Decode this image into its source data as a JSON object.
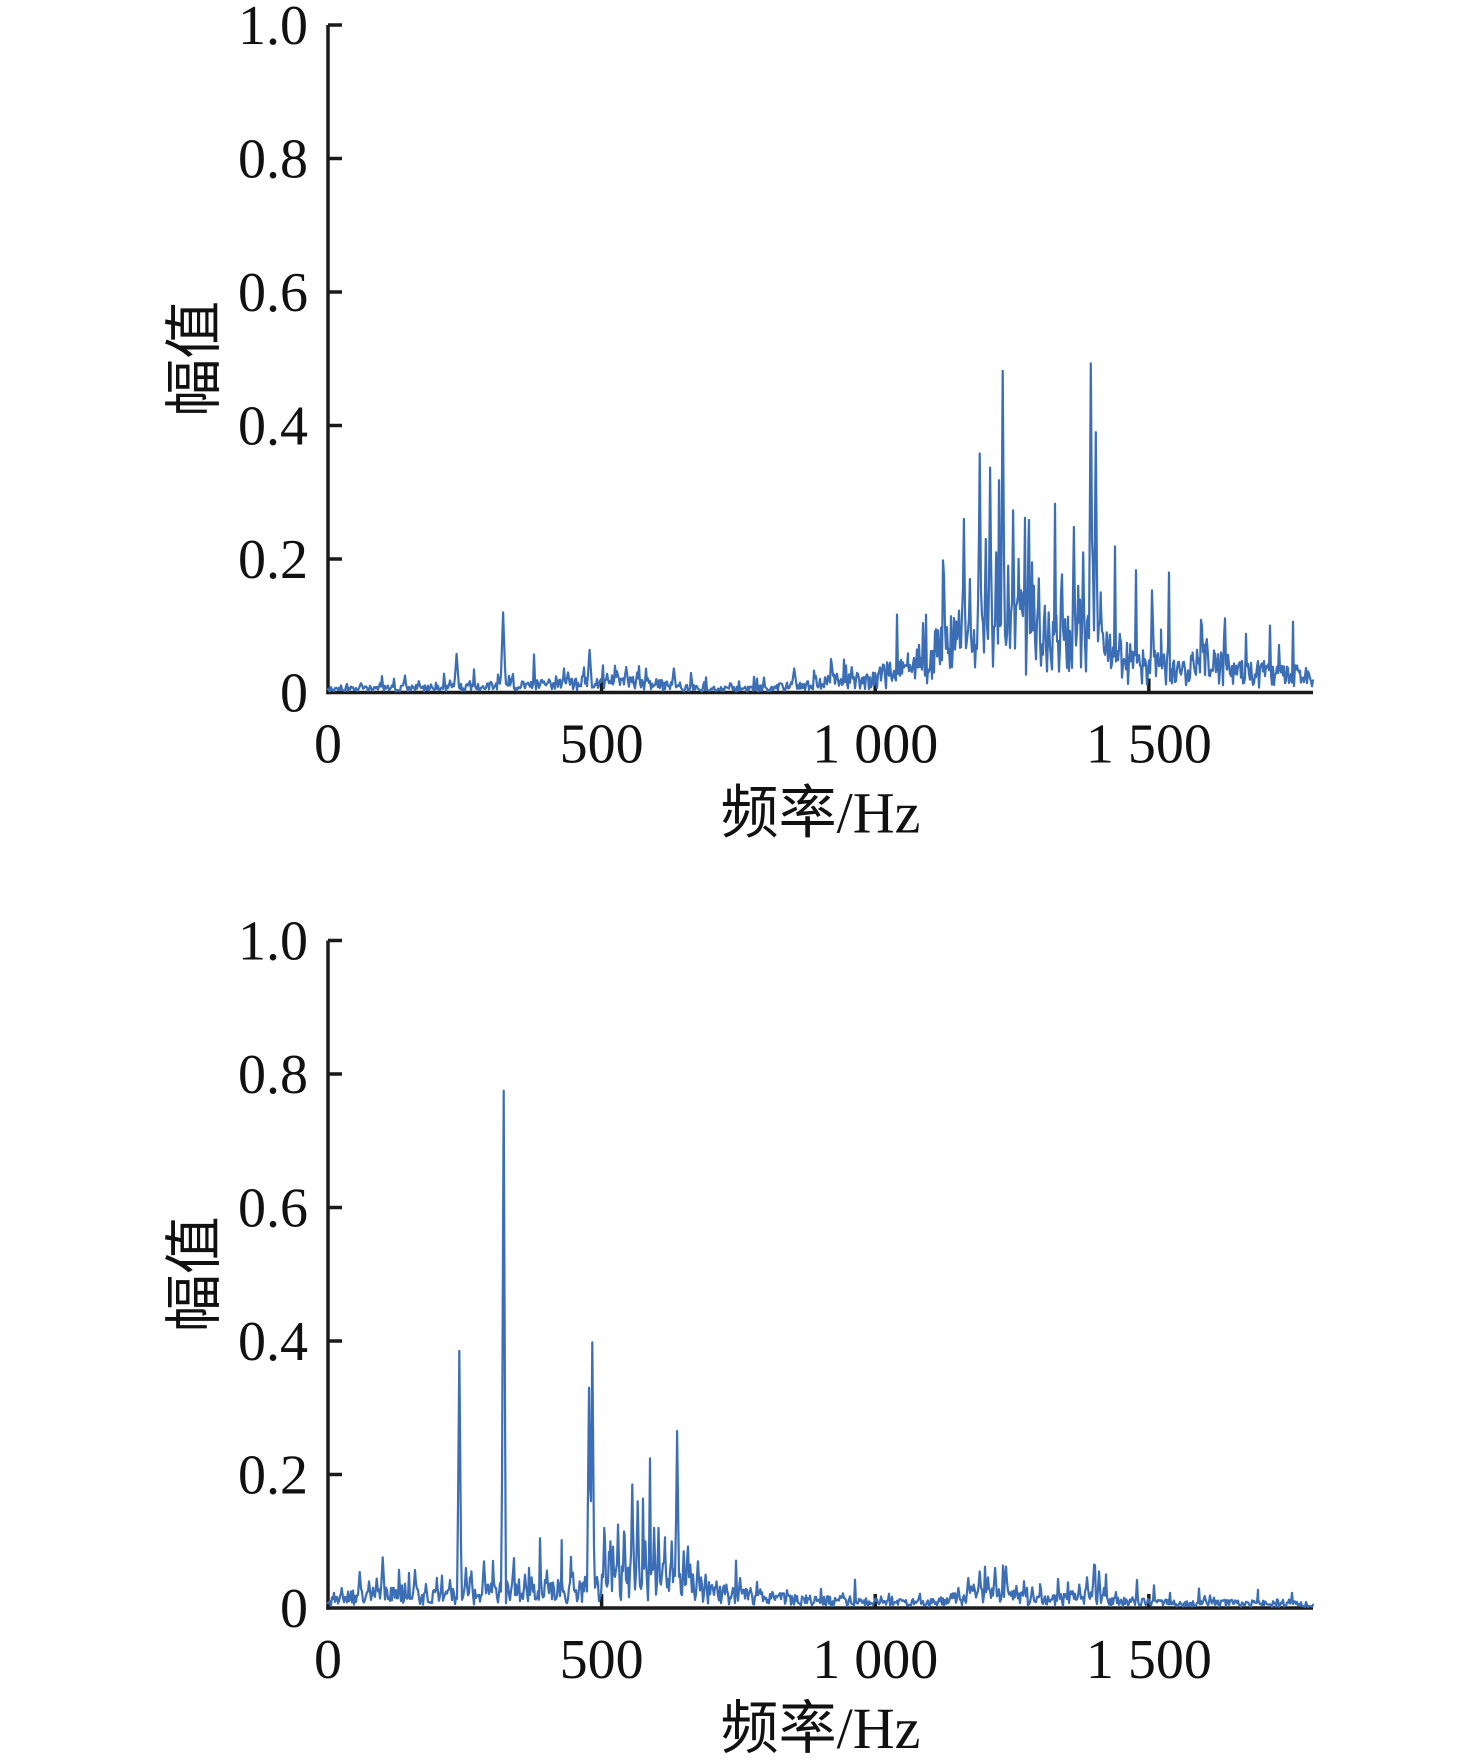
{
  "figure": {
    "background": "#ffffff",
    "axis_color": "#1a1a1a",
    "text_color": "#111111",
    "accent_blue": "#3b6eb5"
  },
  "chart_data": [
    {
      "type": "line",
      "title": "",
      "xlabel": "频率/Hz",
      "ylabel": "幅值",
      "xlim": [
        0,
        1800
      ],
      "ylim": [
        0,
        1.0
      ],
      "grid": false,
      "legend": null,
      "line_color": "#3b6eb5",
      "noise_seed": 13,
      "xticks": [
        {
          "v": 0,
          "label": "0"
        },
        {
          "v": 500,
          "label": "500"
        },
        {
          "v": 1000,
          "label": "1 000"
        },
        {
          "v": 1500,
          "label": "1 500"
        }
      ],
      "yticks": [
        {
          "v": 0,
          "label": "0"
        },
        {
          "v": 0.2,
          "label": "0.2"
        },
        {
          "v": 0.4,
          "label": "0.4"
        },
        {
          "v": 0.6,
          "label": "0.6"
        },
        {
          "v": 0.8,
          "label": "0.8"
        },
        {
          "v": 1.0,
          "label": "1.0"
        }
      ],
      "noise_floor": [
        [
          0,
          0.005
        ],
        [
          120,
          0.006
        ],
        [
          200,
          0.007
        ],
        [
          300,
          0.009
        ],
        [
          420,
          0.012
        ],
        [
          470,
          0.014
        ],
        [
          530,
          0.015
        ],
        [
          590,
          0.012
        ],
        [
          650,
          0.008
        ],
        [
          700,
          0.005
        ],
        [
          770,
          0.005
        ],
        [
          840,
          0.009
        ],
        [
          900,
          0.013
        ],
        [
          960,
          0.017
        ],
        [
          1020,
          0.025
        ],
        [
          1060,
          0.033
        ],
        [
          1100,
          0.05
        ],
        [
          1140,
          0.065
        ],
        [
          1180,
          0.075
        ],
        [
          1240,
          0.078
        ],
        [
          1300,
          0.072
        ],
        [
          1340,
          0.065
        ],
        [
          1380,
          0.068
        ],
        [
          1410,
          0.06
        ],
        [
          1435,
          0.048
        ],
        [
          1470,
          0.04
        ],
        [
          1520,
          0.034
        ],
        [
          1570,
          0.036
        ],
        [
          1600,
          0.042
        ],
        [
          1630,
          0.034
        ],
        [
          1680,
          0.028
        ],
        [
          1730,
          0.026
        ],
        [
          1800,
          0.02
        ]
      ],
      "peaks": [
        [
          60,
          0.014,
          6
        ],
        [
          95,
          0.014,
          5
        ],
        [
          140,
          0.021,
          6
        ],
        [
          166,
          0.017,
          5
        ],
        [
          223,
          0.018,
          5
        ],
        [
          235,
          0.058,
          5
        ],
        [
          320,
          0.12,
          5
        ],
        [
          336,
          0.022,
          5
        ],
        [
          357,
          0.016,
          5
        ],
        [
          430,
          0.024,
          6
        ],
        [
          478,
          0.064,
          5
        ],
        [
          510,
          0.028,
          6
        ],
        [
          528,
          0.032,
          6
        ],
        [
          545,
          0.038,
          6
        ],
        [
          565,
          0.03,
          5
        ],
        [
          600,
          0.02,
          5
        ],
        [
          632,
          0.036,
          5
        ],
        [
          852,
          0.036,
          6
        ],
        [
          930,
          0.028,
          6
        ],
        [
          957,
          0.038,
          5
        ],
        [
          1014,
          0.042,
          6
        ],
        [
          1060,
          0.045,
          6
        ],
        [
          1088,
          0.05,
          6
        ],
        [
          1110,
          0.062,
          5
        ],
        [
          1131,
          0.098,
          5
        ],
        [
          1148,
          0.092,
          4
        ],
        [
          1162,
          0.26,
          4
        ],
        [
          1173,
          0.17,
          4
        ],
        [
          1191,
          0.358,
          4
        ],
        [
          1202,
          0.23,
          4
        ],
        [
          1210,
          0.337,
          4
        ],
        [
          1221,
          0.21,
          4
        ],
        [
          1233,
          0.482,
          4
        ],
        [
          1243,
          0.19,
          4
        ],
        [
          1252,
          0.273,
          4
        ],
        [
          1262,
          0.2,
          4
        ],
        [
          1271,
          0.15,
          4
        ],
        [
          1280,
          0.225,
          4
        ],
        [
          1290,
          0.16,
          4
        ],
        [
          1299,
          0.171,
          4
        ],
        [
          1310,
          0.13,
          4
        ],
        [
          1317,
          0.12,
          4
        ],
        [
          1331,
          0.1,
          5
        ],
        [
          1347,
          0.11,
          5
        ],
        [
          1363,
          0.248,
          4
        ],
        [
          1371,
          0.16,
          4
        ],
        [
          1380,
          0.21,
          4
        ],
        [
          1394,
          0.493,
          4
        ],
        [
          1403,
          0.39,
          4
        ],
        [
          1412,
          0.15,
          4
        ],
        [
          1423,
          0.09,
          5
        ],
        [
          1447,
          0.088,
          5
        ],
        [
          1466,
          0.065,
          5
        ],
        [
          1482,
          0.056,
          5
        ],
        [
          1522,
          0.055,
          6
        ],
        [
          1555,
          0.046,
          6
        ],
        [
          1580,
          0.06,
          6
        ],
        [
          1597,
          0.1,
          5
        ],
        [
          1606,
          0.08,
          5
        ],
        [
          1620,
          0.056,
          6
        ],
        [
          1646,
          0.046,
          6
        ],
        [
          1679,
          0.042,
          6
        ],
        [
          1710,
          0.04,
          6
        ],
        [
          1743,
          0.04,
          6
        ],
        [
          1775,
          0.03,
          6
        ]
      ]
    },
    {
      "type": "line",
      "title": "",
      "xlabel": "频率/Hz",
      "ylabel": "幅值",
      "xlim": [
        0,
        1800
      ],
      "ylim": [
        0,
        1.0
      ],
      "grid": false,
      "legend": null,
      "line_color": "#3b6eb5",
      "noise_seed": 29,
      "xticks": [
        {
          "v": 0,
          "label": "0"
        },
        {
          "v": 500,
          "label": "500"
        },
        {
          "v": 1000,
          "label": "1 000"
        },
        {
          "v": 1500,
          "label": "1 500"
        }
      ],
      "yticks": [
        {
          "v": 0,
          "label": "0"
        },
        {
          "v": 0.2,
          "label": "0.2"
        },
        {
          "v": 0.4,
          "label": "0.4"
        },
        {
          "v": 0.6,
          "label": "0.6"
        },
        {
          "v": 0.8,
          "label": "0.8"
        },
        {
          "v": 1.0,
          "label": "1.0"
        }
      ],
      "noise_floor": [
        [
          0,
          0.013
        ],
        [
          80,
          0.017
        ],
        [
          140,
          0.017
        ],
        [
          200,
          0.015
        ],
        [
          250,
          0.019
        ],
        [
          300,
          0.021
        ],
        [
          340,
          0.024
        ],
        [
          400,
          0.024
        ],
        [
          460,
          0.024
        ],
        [
          500,
          0.034
        ],
        [
          540,
          0.04
        ],
        [
          580,
          0.044
        ],
        [
          620,
          0.04
        ],
        [
          660,
          0.03
        ],
        [
          700,
          0.022
        ],
        [
          745,
          0.017
        ],
        [
          790,
          0.015
        ],
        [
          850,
          0.011
        ],
        [
          950,
          0.01
        ],
        [
          1020,
          0.007
        ],
        [
          1100,
          0.008
        ],
        [
          1140,
          0.012
        ],
        [
          1170,
          0.015
        ],
        [
          1200,
          0.017
        ],
        [
          1250,
          0.015
        ],
        [
          1300,
          0.011
        ],
        [
          1350,
          0.012
        ],
        [
          1385,
          0.015
        ],
        [
          1420,
          0.011
        ],
        [
          1480,
          0.008
        ],
        [
          1560,
          0.007
        ],
        [
          1650,
          0.007
        ],
        [
          1800,
          0.005
        ]
      ],
      "peaks": [
        [
          25,
          0.03,
          5
        ],
        [
          58,
          0.054,
          5
        ],
        [
          75,
          0.04,
          5
        ],
        [
          89,
          0.044,
          5
        ],
        [
          100,
          0.076,
          5
        ],
        [
          120,
          0.03,
          5
        ],
        [
          159,
          0.057,
          5
        ],
        [
          179,
          0.036,
          5
        ],
        [
          199,
          0.04,
          5
        ],
        [
          223,
          0.042,
          5
        ],
        [
          240,
          0.385,
          4
        ],
        [
          252,
          0.06,
          4
        ],
        [
          262,
          0.055,
          4
        ],
        [
          285,
          0.07,
          5
        ],
        [
          302,
          0.056,
          4
        ],
        [
          321,
          0.775,
          4
        ],
        [
          338,
          0.054,
          5
        ],
        [
          360,
          0.05,
          5
        ],
        [
          372,
          0.046,
          5
        ],
        [
          400,
          0.056,
          5
        ],
        [
          427,
          0.046,
          5
        ],
        [
          445,
          0.05,
          5
        ],
        [
          460,
          0.04,
          5
        ],
        [
          477,
          0.33,
          4
        ],
        [
          483,
          0.398,
          4
        ],
        [
          505,
          0.12,
          4
        ],
        [
          516,
          0.1,
          4
        ],
        [
          530,
          0.125,
          4
        ],
        [
          542,
          0.11,
          4
        ],
        [
          556,
          0.185,
          4
        ],
        [
          566,
          0.16,
          4
        ],
        [
          580,
          0.1,
          4
        ],
        [
          596,
          0.12,
          4
        ],
        [
          604,
          0.12,
          4
        ],
        [
          616,
          0.09,
          4
        ],
        [
          628,
          0.1,
          4
        ],
        [
          638,
          0.265,
          4
        ],
        [
          650,
          0.085,
          4
        ],
        [
          662,
          0.065,
          5
        ],
        [
          676,
          0.07,
          5
        ],
        [
          690,
          0.05,
          5
        ],
        [
          710,
          0.04,
          5
        ],
        [
          728,
          0.035,
          5
        ],
        [
          753,
          0.045,
          5
        ],
        [
          772,
          0.03,
          5
        ],
        [
          790,
          0.028,
          5
        ],
        [
          812,
          0.024,
          6
        ],
        [
          880,
          0.016,
          6
        ],
        [
          941,
          0.022,
          6
        ],
        [
          1000,
          0.014,
          6
        ],
        [
          1080,
          0.016,
          6
        ],
        [
          1142,
          0.022,
          5
        ],
        [
          1152,
          0.03,
          5
        ],
        [
          1170,
          0.045,
          5
        ],
        [
          1180,
          0.035,
          5
        ],
        [
          1191,
          0.055,
          5
        ],
        [
          1206,
          0.046,
          5
        ],
        [
          1219,
          0.06,
          5
        ],
        [
          1239,
          0.062,
          5
        ],
        [
          1258,
          0.033,
          5
        ],
        [
          1273,
          0.028,
          5
        ],
        [
          1287,
          0.031,
          5
        ],
        [
          1301,
          0.025,
          5
        ],
        [
          1361,
          0.025,
          5
        ],
        [
          1373,
          0.035,
          5
        ],
        [
          1387,
          0.046,
          5
        ],
        [
          1400,
          0.065,
          4
        ],
        [
          1409,
          0.055,
          4
        ],
        [
          1418,
          0.03,
          5
        ],
        [
          1470,
          0.016,
          6
        ],
        [
          1530,
          0.012,
          6
        ],
        [
          1602,
          0.018,
          6
        ],
        [
          1650,
          0.012,
          6
        ],
        [
          1700,
          0.012,
          6
        ],
        [
          1760,
          0.01,
          6
        ]
      ]
    }
  ]
}
